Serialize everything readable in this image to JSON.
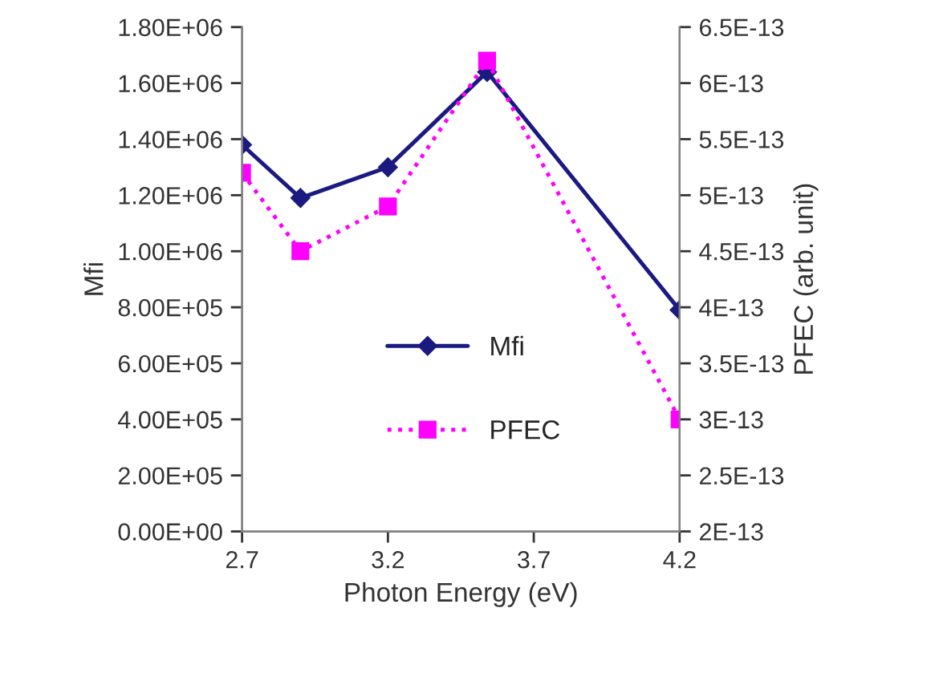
{
  "chart_data": {
    "type": "line",
    "xlabel": "Photon Energy (eV)",
    "ylabel": "Mfi",
    "y2label": "PFEC (arb. unit)",
    "x": [
      2.7,
      2.9,
      3.2,
      3.54,
      4.2
    ],
    "series": [
      {
        "name": "Mfi",
        "color": "#1a1a80",
        "values": [
          1380000,
          1190000,
          1300000,
          1640000,
          790000
        ],
        "marker": "diamond",
        "line_style": "solid"
      },
      {
        "name": "PFEC",
        "color": "#ff00ff",
        "values": [
          5.2e-13,
          4.5e-13,
          4.9e-13,
          6.2e-13,
          3e-13
        ],
        "axis": "y2",
        "marker": "square",
        "line_style": "dotted"
      }
    ],
    "xlim": [
      2.7,
      4.2
    ],
    "xticks": [
      2.7,
      3.2,
      3.7,
      4.2
    ],
    "ylim": [
      0,
      1800000
    ],
    "yticks": [
      {
        "value": 0,
        "label": "0.00E+00"
      },
      {
        "value": 200000,
        "label": "2.00E+05"
      },
      {
        "value": 400000,
        "label": "4.00E+05"
      },
      {
        "value": 600000,
        "label": "6.00E+05"
      },
      {
        "value": 800000,
        "label": "8.00E+05"
      },
      {
        "value": 1000000,
        "label": "1.00E+06"
      },
      {
        "value": 1200000,
        "label": "1.20E+06"
      },
      {
        "value": 1400000,
        "label": "1.40E+06"
      },
      {
        "value": 1600000,
        "label": "1.60E+06"
      },
      {
        "value": 1800000,
        "label": "1.80E+06"
      }
    ],
    "y2lim": [
      2e-13,
      6.5e-13
    ],
    "y2ticks": [
      {
        "value": 2e-13,
        "label": "2E-13"
      },
      {
        "value": 2.5e-13,
        "label": "2.5E-13"
      },
      {
        "value": 3e-13,
        "label": "3E-13"
      },
      {
        "value": 3.5e-13,
        "label": "3.5E-13"
      },
      {
        "value": 4e-13,
        "label": "4E-13"
      },
      {
        "value": 4.5e-13,
        "label": "4.5E-13"
      },
      {
        "value": 5e-13,
        "label": "5E-13"
      },
      {
        "value": 5.5e-13,
        "label": "5.5E-13"
      },
      {
        "value": 6e-13,
        "label": "6E-13"
      },
      {
        "value": 6.5e-13,
        "label": "6.5E-13"
      }
    ],
    "grid": false,
    "legend": "center"
  }
}
